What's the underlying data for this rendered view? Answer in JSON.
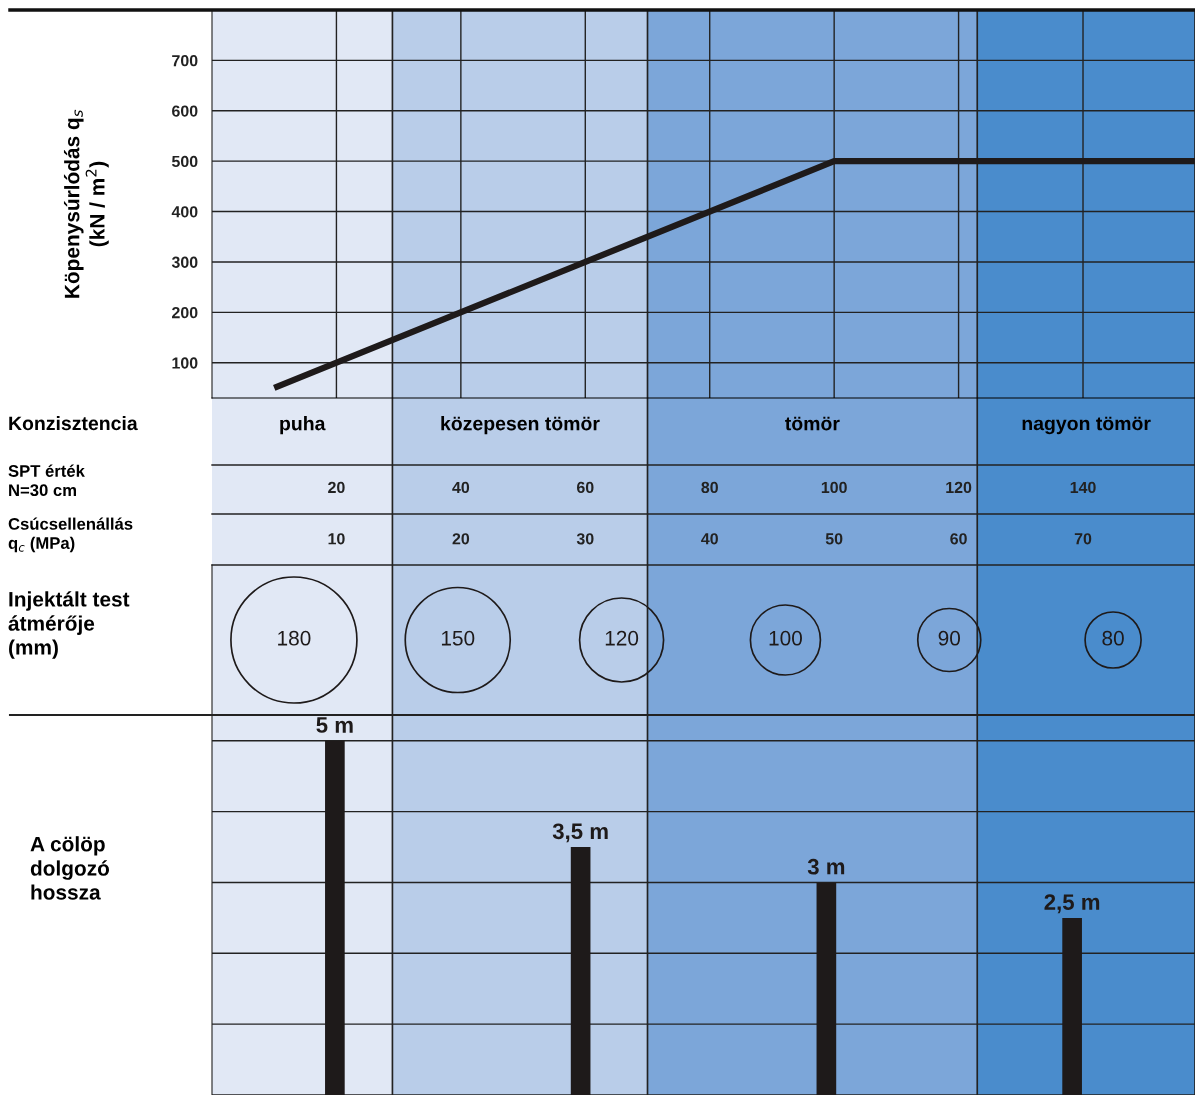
{
  "chart_data": [
    {
      "type": "line",
      "ylabel": "Köpenysúrlódás q$_{s}$\n(kN / m$^{2}$)",
      "xlabel": "SPT érték\nN=30 cm",
      "x2label": "Csúcsellenállás\nq$_{c}$ (MPa)",
      "annotations": [
        "Konzisztencia"
      ],
      "xlim": [
        0,
        158
      ],
      "xticks": [
        20,
        40,
        60,
        80,
        100,
        120,
        140
      ],
      "x2lim": [
        0,
        79
      ],
      "x2ticks": [
        10,
        20,
        30,
        40,
        50,
        60,
        70
      ],
      "ylim": [
        30,
        800
      ],
      "yticks": [
        100,
        200,
        300,
        400,
        500,
        600,
        700
      ],
      "grid": true,
      "marker": "none",
      "line_style": "solid",
      "series": [
        {
          "color": "#1e1a1a",
          "x": [
            10,
            100,
            158
          ],
          "values": [
            50,
            500,
            500
          ]
        }
      ],
      "bands": [
        {
          "axis": "x",
          "from": 0,
          "to": 29,
          "label": "puha",
          "color": "#e1e8f5"
        },
        {
          "axis": "x",
          "from": 29,
          "to": 70,
          "label": "közepesen tömör",
          "color": "#b9cde9"
        },
        {
          "axis": "x",
          "from": 70,
          "to": 123,
          "label": "tömör",
          "color": "#7ca6d9"
        },
        {
          "axis": "x",
          "from": 123,
          "to": 158,
          "label": "nagyon tömör",
          "color": "#4a8ccc"
        }
      ]
    },
    {
      "type": "other",
      "ylabel": "Injektált test\nátmérője\n(mm)",
      "categories": [
        null,
        null,
        null,
        null,
        null,
        null
      ],
      "values": [
        180,
        150,
        120,
        100,
        90,
        80
      ],
      "data_labels": true,
      "color": "#1e1a1a"
    },
    {
      "type": "bar",
      "ylabel": "A cölöp\ndolgozó\nhossza",
      "categories": [
        null,
        null,
        null,
        null
      ],
      "grid": "y",
      "values": [
        5,
        3.5,
        3,
        2.5
      ],
      "value_labels": [
        "5 m",
        "3,5 m",
        "3 m",
        "2,5 m"
      ],
      "color": "#1e1a1a"
    }
  ]
}
